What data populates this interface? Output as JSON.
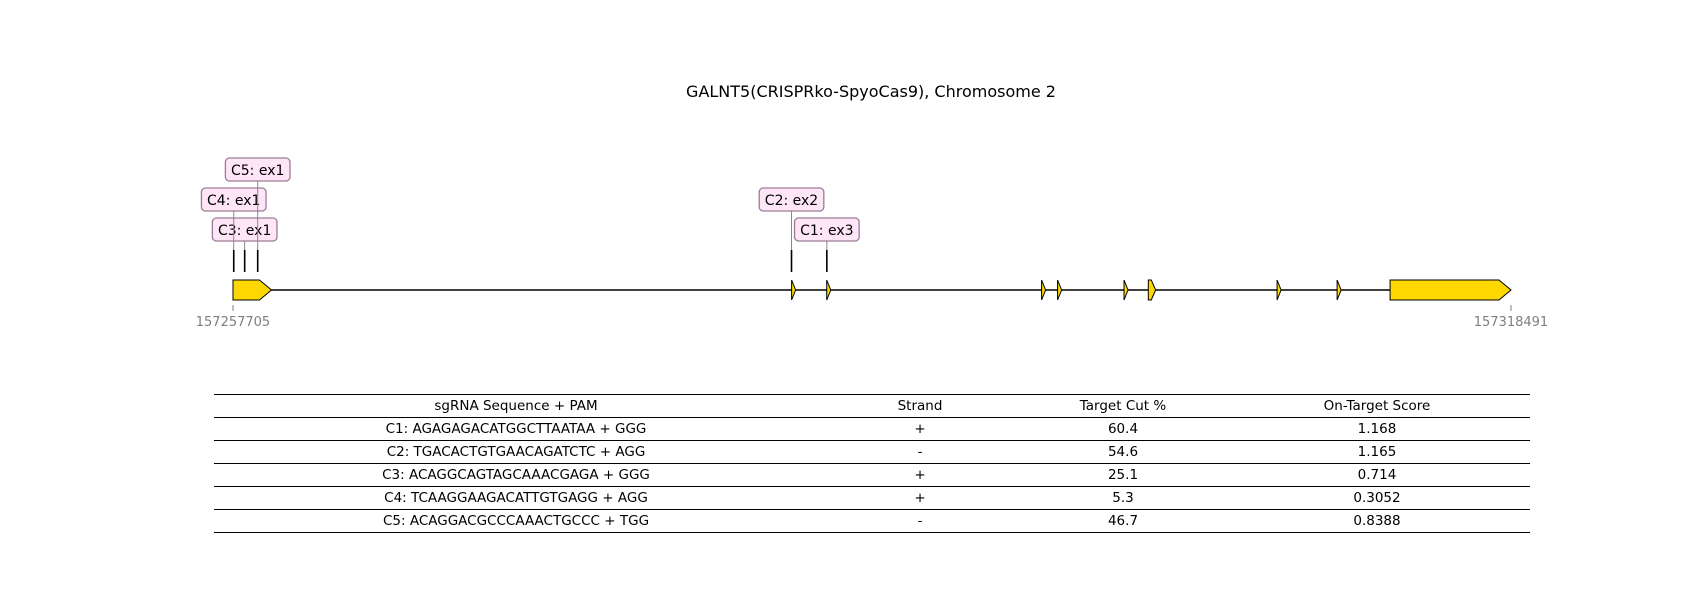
{
  "title": "GALNT5(CRISPRko-SpyoCas9), Chromosome 2",
  "colors": {
    "exon_fill": "#ffd700",
    "label_fill": "#ffe6f7",
    "label_border": "#9a7d94",
    "coord_text": "#7f7f7f"
  },
  "gene_map": {
    "start_coord": "157257705",
    "end_coord": "157318491",
    "start": 157257705,
    "end": 157318491,
    "strand": "+",
    "exons": [
      {
        "start": 157257705,
        "end": 157259535
      },
      {
        "start": 157284270,
        "end": 157284470
      },
      {
        "start": 157285950,
        "end": 157286130
      },
      {
        "start": 157296190,
        "end": 157296330
      },
      {
        "start": 157296960,
        "end": 157297080
      },
      {
        "start": 157300110,
        "end": 157300250
      },
      {
        "start": 157301240,
        "end": 157301590
      },
      {
        "start": 157307400,
        "end": 157307520
      },
      {
        "start": 157310230,
        "end": 157310400
      },
      {
        "start": 157312740,
        "end": 157318491
      }
    ],
    "cut_sites": [
      {
        "label": "C1: ex3",
        "pos": 157285950,
        "tier": 1
      },
      {
        "label": "C2: ex2",
        "pos": 157284270,
        "tier": 2
      },
      {
        "label": "C3: ex1",
        "pos": 157258260,
        "tier": 1
      },
      {
        "label": "C4: ex1",
        "pos": 157257740,
        "tier": 2
      },
      {
        "label": "C5: ex1",
        "pos": 157258880,
        "tier": 3
      }
    ]
  },
  "table": {
    "headers": [
      "sgRNA Sequence + PAM",
      "Strand",
      "Target Cut %",
      "On-Target Score"
    ],
    "rows": [
      [
        "C1: AGAGAGACATGGCTTAATAA + GGG",
        "+",
        "60.4",
        "1.168"
      ],
      [
        "C2: TGACACTGTGAACAGATCTC + AGG",
        "-",
        "54.6",
        "1.165"
      ],
      [
        "C3: ACAGGCAGTAGCAAACGAGA + GGG",
        "+",
        "25.1",
        "0.714"
      ],
      [
        "C4: TCAAGGAAGACATTGTGAGG + AGG",
        "+",
        "5.3",
        "0.3052"
      ],
      [
        "C5: ACAGGACGCCCAAACTGCCC + TGG",
        "-",
        "46.7",
        "0.8388"
      ]
    ]
  }
}
